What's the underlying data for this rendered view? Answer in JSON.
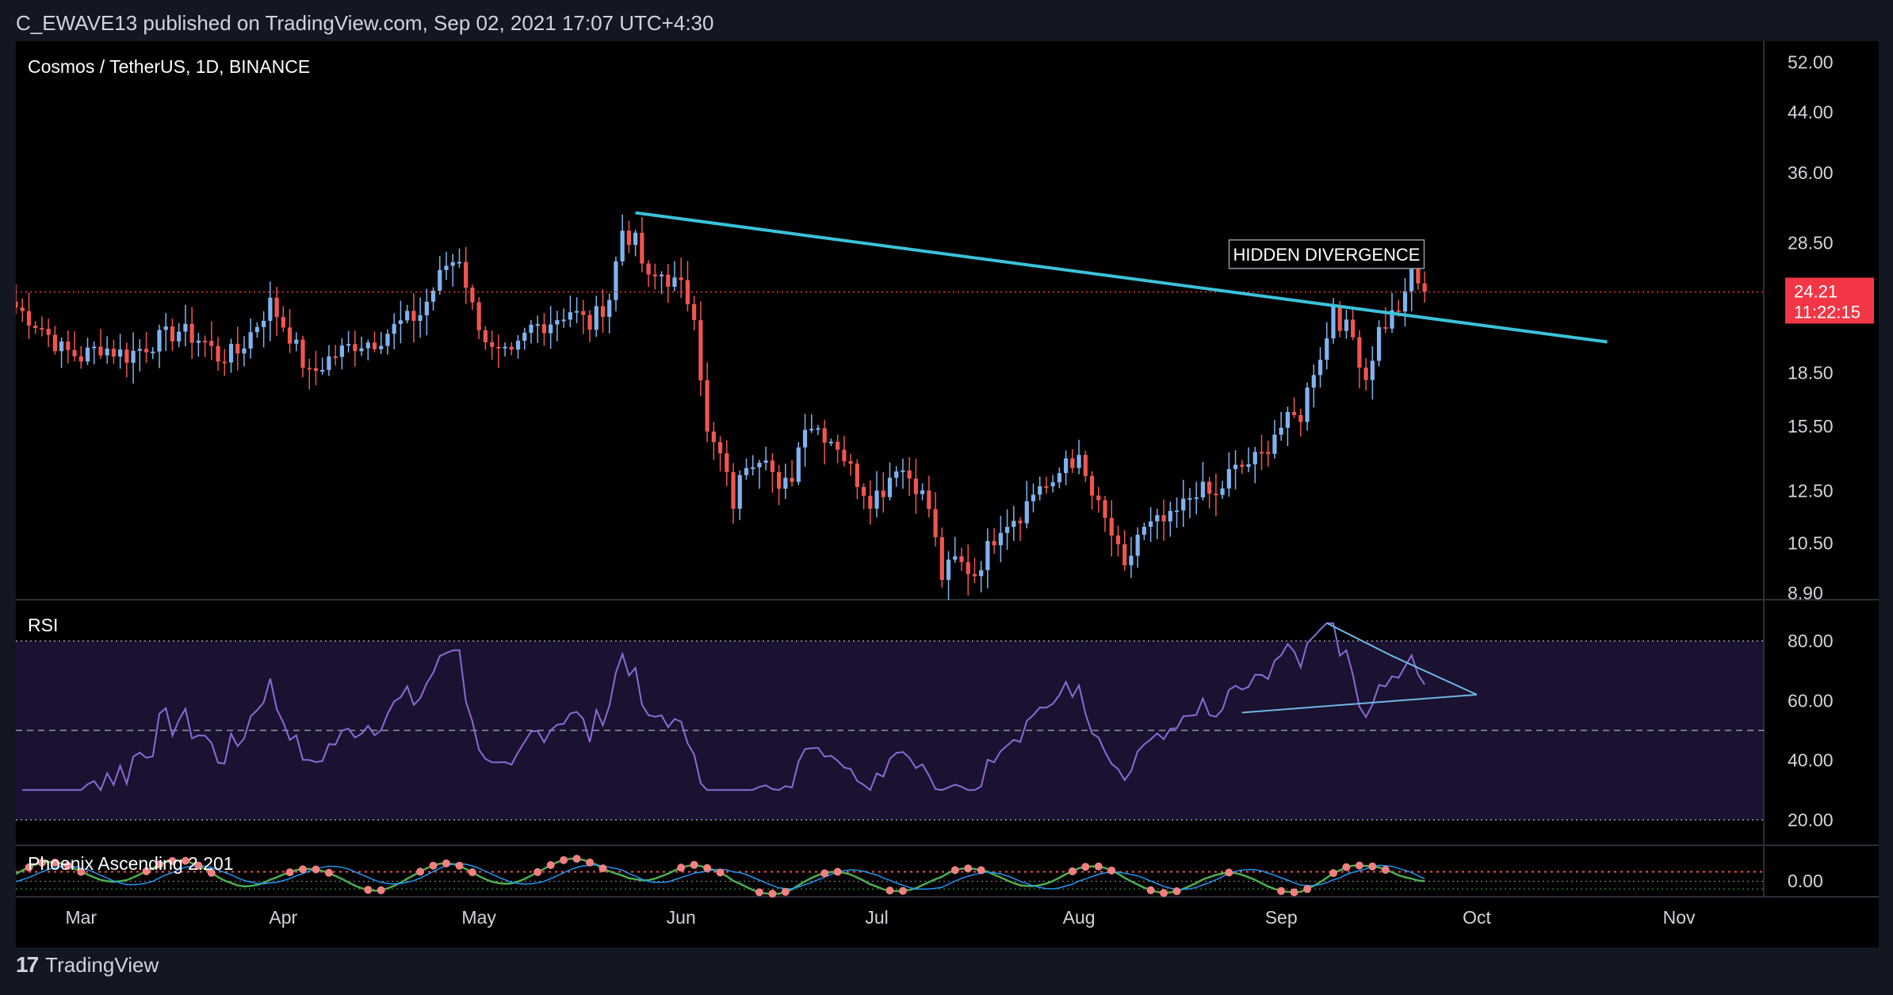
{
  "header": {
    "publisher_line": "C_EWAVE13 published on TradingView.com, Sep 02, 2021 17:07 UTC+4:30"
  },
  "footer": {
    "brand": "TradingView",
    "logo_mark": "17"
  },
  "chart_data": {
    "type": "candlestick",
    "title": "Cosmos / TetherUS, 1D, BINANCE",
    "price_scale": "log",
    "price_ticks": [
      "52.00",
      "44.00",
      "36.00",
      "28.50",
      "24.21",
      "18.50",
      "15.50",
      "12.50",
      "10.50",
      "8.90"
    ],
    "price_axis_ticks": [
      52.0,
      44.0,
      36.0,
      28.5,
      18.5,
      15.5,
      12.5,
      10.5,
      8.9
    ],
    "price_range": [
      8.7,
      55
    ],
    "last_price": {
      "value": 24.21,
      "label": "24.21",
      "countdown": "11:22:15",
      "color": "#f23645"
    },
    "x_labels": [
      "Mar",
      "Apr",
      "May",
      "Jun",
      "Jul",
      "Aug",
      "Sep",
      "Oct",
      "Nov"
    ],
    "x_label_days": [
      59,
      90,
      120,
      151,
      181,
      212,
      243,
      273,
      304
    ],
    "x_range_days": [
      49,
      317
    ],
    "data_start": "2021-02-18",
    "price_anchors": [
      [
        49,
        23.0
      ],
      [
        53,
        21.5
      ],
      [
        56,
        20.0
      ],
      [
        59,
        19.5
      ],
      [
        62,
        20.2
      ],
      [
        66,
        19.6
      ],
      [
        70,
        20.5
      ],
      [
        74,
        21.3
      ],
      [
        78,
        20.5
      ],
      [
        80,
        19.5
      ],
      [
        83,
        19.8
      ],
      [
        86,
        21.8
      ],
      [
        88,
        23.3
      ],
      [
        91,
        21.0
      ],
      [
        94,
        18.3
      ],
      [
        97,
        19.4
      ],
      [
        101,
        20.4
      ],
      [
        104,
        20.6
      ],
      [
        108,
        21.8
      ],
      [
        111,
        22.5
      ],
      [
        115,
        26.5
      ],
      [
        117,
        27.2
      ],
      [
        119,
        23.0
      ],
      [
        122,
        19.8
      ],
      [
        125,
        19.4
      ],
      [
        128,
        21.5
      ],
      [
        131,
        22.0
      ],
      [
        134,
        22.8
      ],
      [
        137,
        21.7
      ],
      [
        140,
        23.8
      ],
      [
        142,
        29.8
      ],
      [
        144,
        28.5
      ],
      [
        146,
        25.0
      ],
      [
        148,
        25.7
      ],
      [
        151,
        24.5
      ],
      [
        153,
        22.8
      ],
      [
        155,
        15.0
      ],
      [
        157,
        14.0
      ],
      [
        159,
        12.0
      ],
      [
        161,
        13.8
      ],
      [
        164,
        14.3
      ],
      [
        166,
        12.3
      ],
      [
        168,
        13.2
      ],
      [
        170,
        15.8
      ],
      [
        172,
        15.4
      ],
      [
        175,
        14.6
      ],
      [
        177,
        13.4
      ],
      [
        180,
        12.2
      ],
      [
        182,
        12.6
      ],
      [
        184,
        13.7
      ],
      [
        187,
        12.8
      ],
      [
        189,
        11.8
      ],
      [
        191,
        9.4
      ],
      [
        193,
        9.9
      ],
      [
        196,
        9.5
      ],
      [
        198,
        10.3
      ],
      [
        200,
        11.2
      ],
      [
        203,
        11.6
      ],
      [
        206,
        12.8
      ],
      [
        208,
        12.5
      ],
      [
        210,
        14.0
      ],
      [
        212,
        13.7
      ],
      [
        214,
        12.3
      ],
      [
        217,
        10.8
      ],
      [
        219,
        9.5
      ],
      [
        221,
        10.8
      ],
      [
        224,
        11.2
      ],
      [
        226,
        11.3
      ],
      [
        228,
        11.9
      ],
      [
        230,
        12.6
      ],
      [
        233,
        12.2
      ],
      [
        235,
        13.2
      ],
      [
        238,
        13.7
      ],
      [
        240,
        14.0
      ],
      [
        242,
        15.2
      ],
      [
        244,
        15.7
      ],
      [
        246,
        16.1
      ],
      [
        248,
        18.8
      ],
      [
        250,
        20.7
      ],
      [
        251,
        23.4
      ],
      [
        252,
        22.0
      ],
      [
        254,
        20.8
      ],
      [
        256,
        18.2
      ],
      [
        258,
        21.3
      ],
      [
        260,
        22.4
      ],
      [
        262,
        23.6
      ],
      [
        263,
        26.0
      ],
      [
        265,
        24.21
      ]
    ],
    "trendline": {
      "from": [
        144,
        31.5
      ],
      "to": [
        293,
        20.5
      ],
      "color": "#3ac2d9"
    },
    "annotation": {
      "text": "HIDDEN DIVERGENCE",
      "day": 249,
      "price": 27.3
    },
    "candle_colors": {
      "up": "#7eb3f0",
      "down": "#f0554f"
    },
    "rsi": {
      "label": "RSI",
      "ticks": [
        "80.00",
        "60.00",
        "40.00",
        "20.00"
      ],
      "tick_values": [
        80,
        60,
        40,
        20
      ],
      "range": [
        12,
        92
      ],
      "bands": [
        80,
        50,
        20
      ],
      "band_fill": "#1a1230",
      "line_color": "#8c6ad6",
      "triangle": {
        "upper": [
          [
            250,
            86
          ],
          [
            260,
            75
          ],
          [
            273,
            62
          ]
        ],
        "lower": [
          [
            237,
            56
          ],
          [
            273,
            62
          ]
        ],
        "color": "#6fb6e6"
      }
    },
    "phoenix": {
      "label": "Phoenix Ascending 2.201",
      "tick": "0.00",
      "range": [
        0,
        32
      ]
    }
  }
}
